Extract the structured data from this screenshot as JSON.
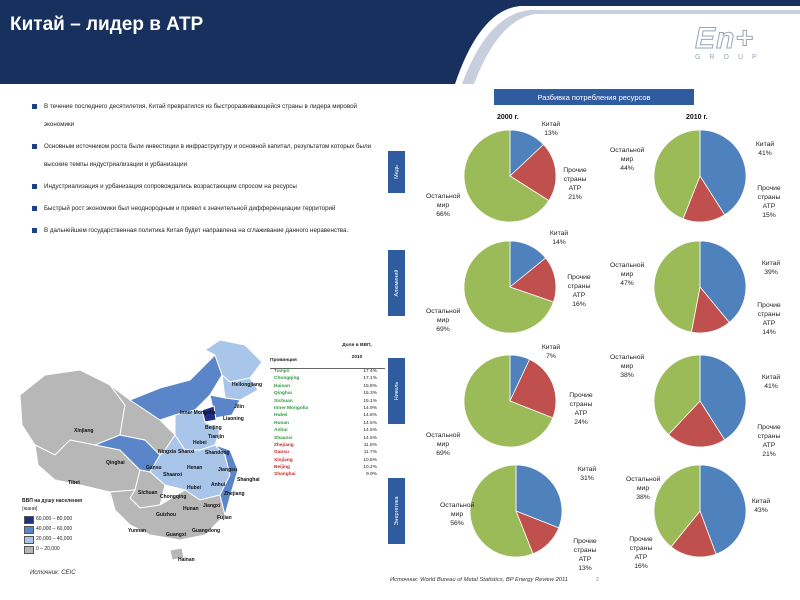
{
  "header": {
    "title": "Китай – лидер в АТР",
    "colors": {
      "navy": "#17305e",
      "accent": "#2f5c9e"
    },
    "logo": {
      "text": "En+",
      "sub": "GROUP"
    }
  },
  "bullets": [
    "В течение последнего десятилетия, Китай превратился из быстроразвивающейся страны в лидера мировой экономики",
    "Основным источником роста были инвестиции в инфраструктуру и основной капитал, результатом которых были высокие темпы индустриализации и урбанизации",
    "Индустриализация и урбанизация сопровождались возрастающим спросом на ресурсы",
    "Быстрый рост экономики был неоднородным и привел к значительной дифференциации территорий",
    "В дальнейшем государственная политика Китая будет направлена на сглаживание данного неравенства."
  ],
  "table": {
    "col_province": "Провинция",
    "col_share": "Доля в ВВП, 2010",
    "rows": [
      {
        "name": "Tianjin",
        "value": "17.4%",
        "color": "#2f9a3f"
      },
      {
        "name": "Chongqing",
        "value": "17.1%",
        "color": "#2f9a3f"
      },
      {
        "name": "Hainan",
        "value": "15.8%",
        "color": "#2f9a3f"
      },
      {
        "name": "Qinghai",
        "value": "15.3%",
        "color": "#2f9a3f"
      },
      {
        "name": "Sichuan",
        "value": "15.1%",
        "color": "#2f9a3f"
      },
      {
        "name": "Inner Mongolia",
        "value": "14.9%",
        "color": "#2f9a3f"
      },
      {
        "name": "Hubei",
        "value": "14.8%",
        "color": "#2f9a3f"
      },
      {
        "name": "Hunan",
        "value": "14.5%",
        "color": "#2f9a3f"
      },
      {
        "name": "Anhui",
        "value": "14.5%",
        "color": "#2f9a3f"
      },
      {
        "name": "Shaanxi",
        "value": "14.5%",
        "color": "#2f9a3f"
      },
      {
        "name": "Zhejiang",
        "value": "11.8%",
        "color": "#cc2a2a"
      },
      {
        "name": "Gansu",
        "value": "11.7%",
        "color": "#cc2a2a"
      },
      {
        "name": "Xinjiang",
        "value": "10.6%",
        "color": "#cc2a2a"
      },
      {
        "name": "Beijing",
        "value": "10.2%",
        "color": "#cc2a2a"
      },
      {
        "name": "Shanghai",
        "value": "9.9%",
        "color": "#cc2a2a"
      }
    ]
  },
  "map": {
    "legend_title": "ВВП на душу населения",
    "legend_unit": "(юани)",
    "legend": [
      {
        "label": "60,000 – 80,000",
        "color": "#1f2f86"
      },
      {
        "label": "40,000 – 60,000",
        "color": "#5a85c8"
      },
      {
        "label": "20,000 – 40,000",
        "color": "#a9c6ea"
      },
      {
        "label": "0 – 20,000",
        "color": "#b7b7b7"
      }
    ],
    "labels": [
      "Heilongjiang",
      "Jilin",
      "Liaoning",
      "Inner Mongolia",
      "Beijing",
      "Tianjin",
      "Hebei",
      "Shanxi",
      "Shandong",
      "Ningxia",
      "Xinjiang",
      "Qinghai",
      "Gansu",
      "Shaanxi",
      "Henan",
      "Jiangsu",
      "Tibet",
      "Sichuan",
      "Hubei",
      "Anhui",
      "Shanghai",
      "Chongqing",
      "Zhejiang",
      "Guizhou",
      "Hunan",
      "Jiangxi",
      "Fujian",
      "Yunnan",
      "Guangxi",
      "Guangdong",
      "Hainan"
    ],
    "source": "Источник: CEIC"
  },
  "charts": {
    "panel_title": "Разбивка потребления ресурсов",
    "years": [
      "2000 г.",
      "2010 г."
    ],
    "rows": [
      {
        "label": "Медь",
        "pies": [
          {
            "slices": [
              {
                "name": "Китай",
                "value": 13,
                "label": "13%",
                "color": "#4f81bd"
              },
              {
                "name": "Прочие страны АТР",
                "value": 21,
                "label": "21%",
                "color": "#c0504d"
              },
              {
                "name": "Остальной мир",
                "value": 66,
                "label": "66%",
                "color": "#9bbb59"
              }
            ]
          },
          {
            "slices": [
              {
                "name": "Китай",
                "value": 41,
                "label": "41%",
                "color": "#4f81bd"
              },
              {
                "name": "Прочие страны АТР",
                "value": 15,
                "label": "15%",
                "color": "#c0504d"
              },
              {
                "name": "Остальной мир",
                "value": 44,
                "label": "44%",
                "color": "#9bbb59"
              }
            ]
          }
        ]
      },
      {
        "label": "Алюминий",
        "pies": [
          {
            "slices": [
              {
                "name": "Китай",
                "value": 14,
                "label": "14%",
                "color": "#4f81bd"
              },
              {
                "name": "Прочие страны АТР",
                "value": 16,
                "label": "16%",
                "color": "#c0504d"
              },
              {
                "name": "Остальной мир",
                "value": 69,
                "label": "69%",
                "color": "#9bbb59"
              }
            ]
          },
          {
            "slices": [
              {
                "name": "Китай",
                "value": 39,
                "label": "39%",
                "color": "#4f81bd"
              },
              {
                "name": "Прочие страны АТР",
                "value": 14,
                "label": "14%",
                "color": "#c0504d"
              },
              {
                "name": "Остальной мир",
                "value": 47,
                "label": "47%",
                "color": "#9bbb59"
              }
            ]
          }
        ]
      },
      {
        "label": "Никель",
        "pies": [
          {
            "slices": [
              {
                "name": "Китай",
                "value": 7,
                "label": "7%",
                "color": "#4f81bd"
              },
              {
                "name": "Прочие страны АТР",
                "value": 24,
                "label": "24%",
                "color": "#c0504d"
              },
              {
                "name": "Остальной мир",
                "value": 69,
                "label": "69%",
                "color": "#9bbb59"
              }
            ]
          },
          {
            "slices": [
              {
                "name": "Китай",
                "value": 41,
                "label": "41%",
                "color": "#4f81bd"
              },
              {
                "name": "Прочие страны АТР",
                "value": 21,
                "label": "21%",
                "color": "#c0504d"
              },
              {
                "name": "Остальной мир",
                "value": 38,
                "label": "38%",
                "color": "#9bbb59"
              }
            ]
          }
        ]
      },
      {
        "label": "Энергетика",
        "pies": [
          {
            "slices": [
              {
                "name": "Китай",
                "value": 31,
                "label": "31%",
                "color": "#4f81bd"
              },
              {
                "name": "Прочие страны АТР",
                "value": 13,
                "label": "13%",
                "color": "#c0504d"
              },
              {
                "name": "Остальной мир",
                "value": 56,
                "label": "56%",
                "color": "#9bbb59"
              }
            ]
          },
          {
            "slices": [
              {
                "name": "Китай",
                "value": 43,
                "label": "43%",
                "color": "#4f81bd"
              },
              {
                "name": "Прочие страны АТР",
                "value": 16,
                "label": "16%",
                "color": "#c0504d"
              },
              {
                "name": "Остальной мир",
                "value": 38,
                "label": "38%",
                "color": "#9bbb59"
              }
            ]
          }
        ]
      }
    ],
    "source": "Источник: World Bureau of Metal Statistics, BP Energy Review 2011"
  },
  "page_number": "2"
}
